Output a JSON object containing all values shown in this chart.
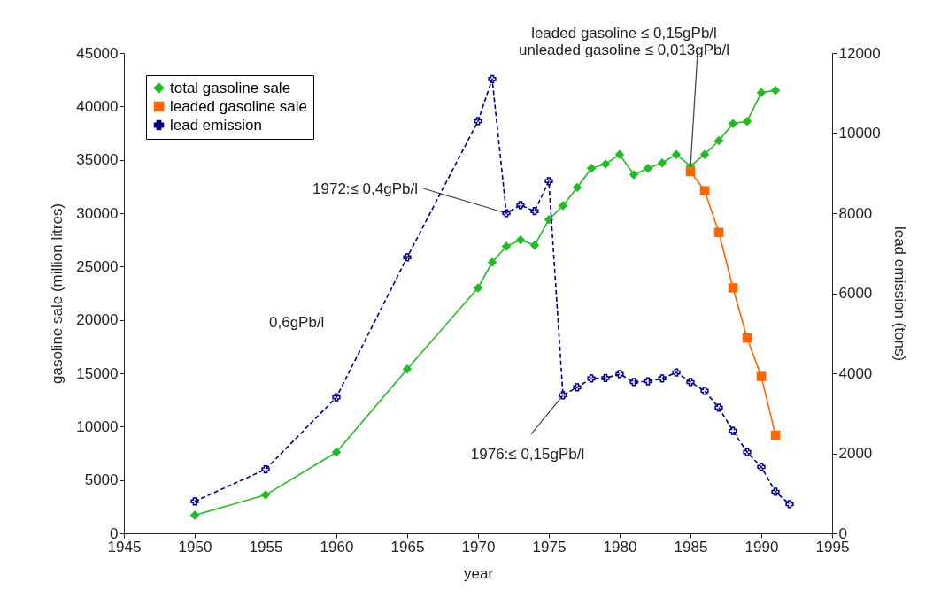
{
  "chart_data": {
    "type": "line",
    "xlabel": "year",
    "ylabel": "gasoline sale (million litres)",
    "y2label": "lead emission (tons)",
    "xlim": [
      1945,
      1995
    ],
    "xticks": [
      1945,
      1950,
      1955,
      1960,
      1965,
      1970,
      1975,
      1980,
      1985,
      1990,
      1995
    ],
    "ylim": [
      0,
      45000
    ],
    "yticks": [
      0,
      5000,
      10000,
      15000,
      20000,
      25000,
      30000,
      35000,
      40000,
      45000
    ],
    "y2lim": [
      0,
      12000
    ],
    "y2ticks": [
      0,
      2000,
      4000,
      6000,
      8000,
      10000,
      12000
    ],
    "grid": false,
    "legend": "top left",
    "series": [
      {
        "name": "total gasoline sale",
        "color": "#22bb22",
        "marker": "diamond",
        "line_style": "solid",
        "x": [
          1950,
          1955,
          1960,
          1965,
          1970,
          1971,
          1972,
          1973,
          1974,
          1975,
          1976,
          1977,
          1978,
          1979,
          1980,
          1981,
          1982,
          1983,
          1984,
          1985,
          1986,
          1987,
          1988,
          1989,
          1990,
          1991
        ],
        "values": [
          1700,
          3600,
          7600,
          15400,
          23000,
          25400,
          26900,
          27500,
          27000,
          29400,
          30700,
          32400,
          34200,
          34600,
          35500,
          33600,
          34200,
          34700,
          35500,
          34400,
          35500,
          36800,
          38400,
          38600,
          41300,
          41500
        ]
      },
      {
        "name": "leaded gasoline sale",
        "color": "#ff6600",
        "marker": "square",
        "line_style": "solid",
        "x": [
          1985,
          1986,
          1987,
          1988,
          1989,
          1990,
          1991
        ],
        "values": [
          33900,
          32100,
          28200,
          23000,
          18300,
          14700,
          9200
        ]
      },
      {
        "name": "lead emission",
        "color": "#000080",
        "marker": "cross",
        "line_style": "dashed",
        "axis": "y2",
        "x": [
          1950,
          1955,
          1960,
          1965,
          1970,
          1971,
          1972,
          1973,
          1974,
          1975,
          1976,
          1977,
          1978,
          1979,
          1980,
          1981,
          1982,
          1983,
          1984,
          1985,
          1986,
          1987,
          1988,
          1989,
          1990,
          1991,
          1992
        ],
        "values": [
          800,
          1600,
          3400,
          6900,
          10300,
          11350,
          8000,
          8200,
          8050,
          8800,
          3450,
          3650,
          3870,
          3880,
          3980,
          3780,
          3800,
          3870,
          4020,
          3780,
          3560,
          3140,
          2560,
          2030,
          1660,
          1040,
          730
        ]
      }
    ],
    "annotations": [
      {
        "text": "leaded gasoline     ≤ 0,15gPb/l\nunleaded gasoline ≤ 0,013gPb/l",
        "x": 1985,
        "y": 34400
      },
      {
        "text": "1972:≤ 0,4gPb/l",
        "x": 1972,
        "y": 30000
      },
      {
        "text": "1976:≤ 0,15gPb/l",
        "x": 1976,
        "y": 12940
      },
      "0,6gPb/l"
    ]
  }
}
